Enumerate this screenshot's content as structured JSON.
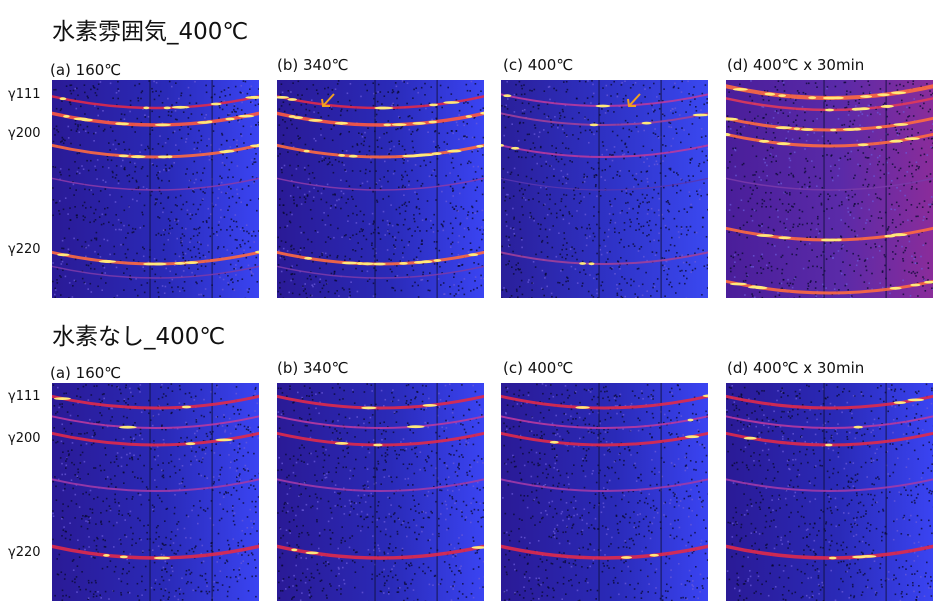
{
  "sections": [
    {
      "title": "水素雰囲気_400℃",
      "panels": [
        {
          "label": "(a) 160℃"
        },
        {
          "label": "(b) 340℃"
        },
        {
          "label": "(c) 400℃"
        },
        {
          "label": "(d) 400℃ x 30min"
        }
      ],
      "peaks": [
        "γ111",
        "γ200",
        "γ220"
      ]
    },
    {
      "title": "水素なし_400℃",
      "panels": [
        {
          "label": "(a) 160℃"
        },
        {
          "label": "(b) 340℃"
        },
        {
          "label": "(c) 400℃"
        },
        {
          "label": "(d) 400℃ x 30min"
        }
      ],
      "peaks": [
        "γ111",
        "γ200",
        "γ220"
      ]
    }
  ],
  "colors": {
    "background_purple": "#2a1a9a",
    "background_blue": "#2e3cf0",
    "ring_red": "#e02a4a",
    "ring_hot": "#ffe97a",
    "arrow": "#f0a020"
  },
  "icons": [
    "arrow-icon"
  ]
}
